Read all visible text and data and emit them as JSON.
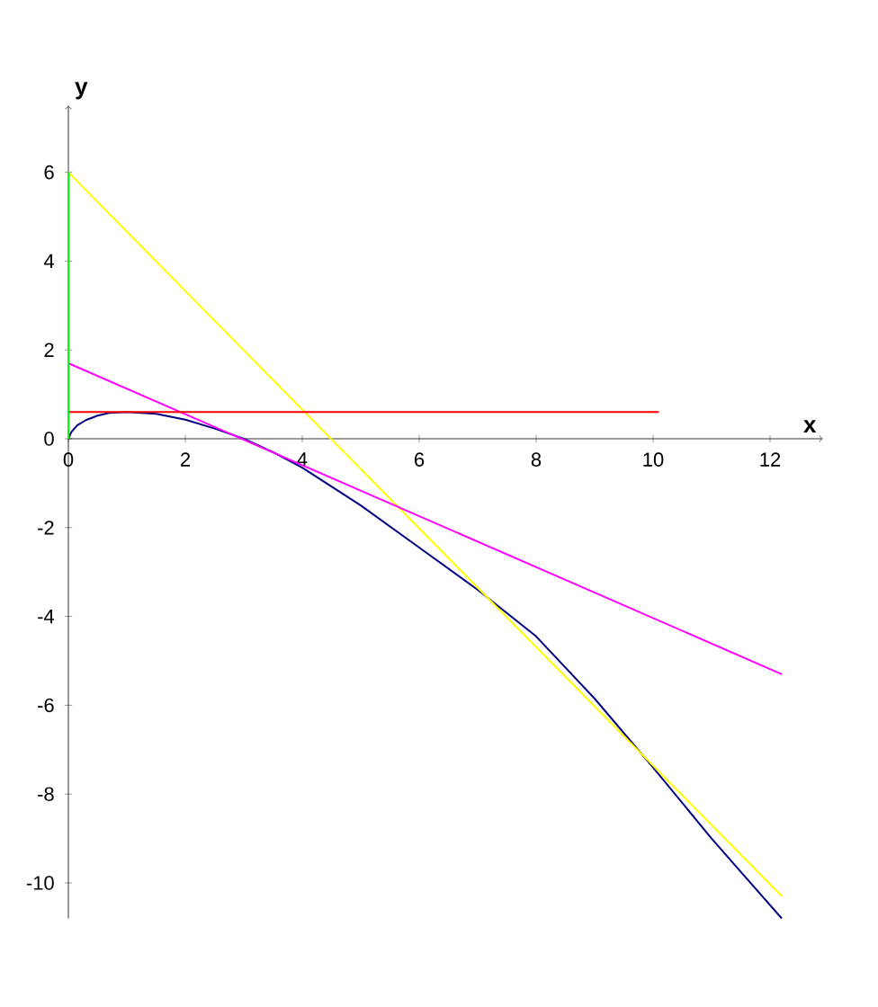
{
  "chart_data": {
    "type": "line",
    "xlabel": "x",
    "ylabel": "y",
    "xlim": [
      0,
      12.9
    ],
    "ylim": [
      -10.8,
      7.5
    ],
    "xticks": [
      0,
      2,
      4,
      6,
      8,
      10,
      12
    ],
    "yticks": [
      -10,
      -8,
      -6,
      -4,
      -2,
      0,
      2,
      4,
      6
    ],
    "grid": false,
    "marker": "none",
    "line_style": "solid",
    "series": [
      {
        "color": "#000080",
        "x": [
          0,
          0.05,
          0.15,
          0.3,
          0.5,
          0.7,
          1,
          1.5,
          2,
          2.5,
          3,
          3.5,
          4,
          5,
          6,
          7,
          8,
          9,
          10,
          11,
          12.2
        ],
        "values": [
          0,
          0.15,
          0.3,
          0.42,
          0.52,
          0.58,
          0.6,
          0.56,
          0.43,
          0.23,
          0,
          -0.3,
          -0.65,
          -1.5,
          -2.45,
          -3.4,
          -4.45,
          -5.85,
          -7.4,
          -9.0,
          -10.8
        ]
      },
      {
        "color": "#ffff00",
        "x": [
          0,
          12.2
        ],
        "values": [
          6,
          -10.3
        ]
      },
      {
        "color": "#ff00ff",
        "x": [
          0,
          12.2
        ],
        "values": [
          1.7,
          -5.3
        ]
      },
      {
        "color": "#ff0000",
        "x": [
          0,
          10.1
        ],
        "values": [
          0.6,
          0.6
        ]
      },
      {
        "color": "#00ff00",
        "x": [
          0,
          0
        ],
        "values": [
          0,
          6
        ]
      }
    ]
  }
}
